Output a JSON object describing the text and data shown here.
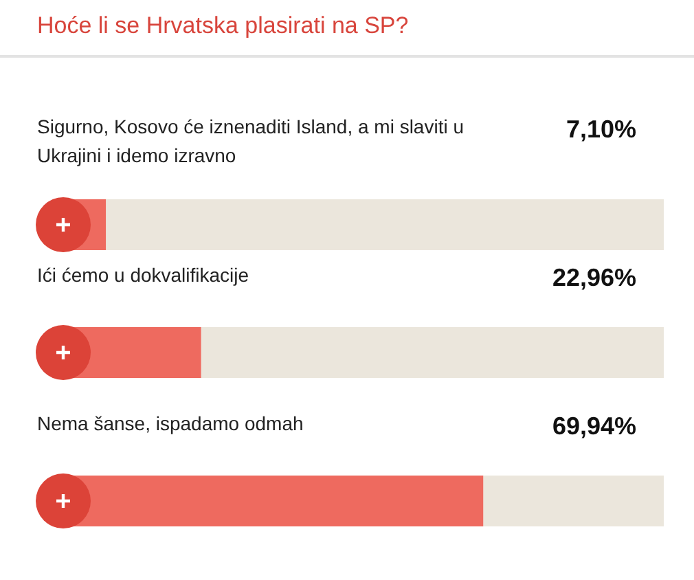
{
  "chart_data": {
    "type": "bar",
    "orientation": "horizontal",
    "title": "Hoće li se Hrvatska plasirati na SP?",
    "categories": [
      "Sigurno, Kosovo će iznenaditi Island, a mi slaviti u Ukrajini i idemo izravno",
      "Ići ćemo u dokvalifikacije",
      "Nema šanse, ispadamo odmah"
    ],
    "values": [
      7.1,
      22.96,
      69.94
    ],
    "value_labels": [
      "7,10%",
      "22,96%",
      "69,94%"
    ],
    "color": "#ee6a5f",
    "xlim": [
      0,
      100
    ]
  }
}
